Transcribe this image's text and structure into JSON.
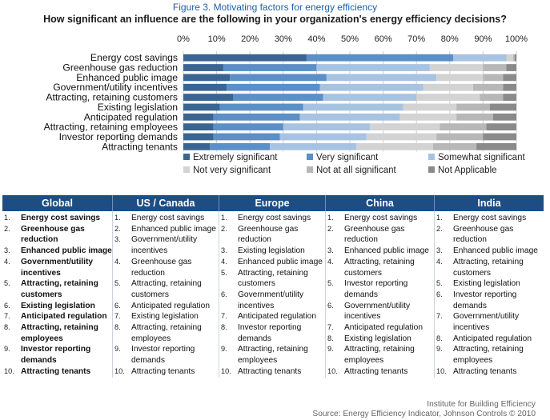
{
  "figure_caption": "Figure 3. Motivating factors for energy efficiency",
  "chart_data": {
    "type": "bar",
    "orientation": "horizontal",
    "stacked": true,
    "title": "How significant an influence are the following in your organization's energy efficiency decisions?",
    "x_ticks": [
      "0%",
      "10%",
      "20%",
      "30%",
      "40%",
      "50%",
      "60%",
      "70%",
      "80%",
      "90%",
      "100%"
    ],
    "xlim": [
      0,
      100
    ],
    "categories": [
      "Energy cost savings",
      "Greenhouse gas reduction",
      "Enhanced public image",
      "Government/utility incentives",
      "Attracting, retaining customers",
      "Existing legislation",
      "Anticipated regulation",
      "Attracting, retaining employees",
      "Investor reporting demands",
      "Attracting tenants"
    ],
    "series": [
      {
        "name": "Extremely significant",
        "color": "#3a6592",
        "values": [
          37,
          12,
          14,
          13,
          15,
          11,
          9,
          9,
          9,
          8
        ]
      },
      {
        "name": "Very significant",
        "color": "#5b8fc7",
        "values": [
          44,
          28,
          29,
          28,
          27,
          25,
          26,
          21,
          20,
          18
        ]
      },
      {
        "name": "Somewhat significant",
        "color": "#a7c3e2",
        "values": [
          16,
          34,
          33,
          31,
          28,
          30,
          30,
          26,
          26,
          26
        ]
      },
      {
        "name": "Not very significant",
        "color": "#d3d3d3",
        "values": [
          2,
          16,
          14,
          15,
          19,
          16,
          17,
          21,
          21,
          23
        ]
      },
      {
        "name": "Not at all significant",
        "color": "#b7b7b7",
        "values": [
          0.5,
          7,
          6,
          9,
          7,
          10,
          11,
          14,
          14,
          13
        ]
      },
      {
        "name": "Not Applicable",
        "color": "#8a8a8a",
        "values": [
          0.5,
          3,
          4,
          4,
          4,
          8,
          7,
          9,
          10,
          12
        ]
      }
    ]
  },
  "rankings": {
    "columns": [
      {
        "header": "Global",
        "bold": true,
        "items": [
          "Energy cost savings",
          "Greenhouse gas reduction",
          "Enhanced public image",
          "Government/utility incentives",
          "Attracting, retaining customers",
          "Existing legislation",
          "Anticipated regulation",
          "Attracting, retaining employees",
          "Investor reporting demands",
          "Attracting tenants"
        ]
      },
      {
        "header": "US / Canada",
        "bold": false,
        "items": [
          "Energy cost savings",
          "Enhanced public image",
          "Government/utility incentives",
          "Greenhouse gas reduction",
          "Attracting, retaining customers",
          "Anticipated regulation",
          "Existing legislation",
          "Attracting, retaining employees",
          "Investor reporting demands",
          "Attracting tenants"
        ]
      },
      {
        "header": "Europe",
        "bold": false,
        "items": [
          "Energy cost savings",
          "Greenhouse gas reduction",
          "Existing legislation",
          "Enhanced public image",
          "Attracting, retaining customers",
          "Government/utility incentives",
          "Anticipated regulation",
          "Investor reporting demands",
          "Attracting, retaining employees",
          "Attracting tenants"
        ]
      },
      {
        "header": "China",
        "bold": false,
        "items": [
          "Energy cost savings",
          "Greenhouse gas reduction",
          "Enhanced public image",
          "Attracting, retaining customers",
          "Investor reporting demands",
          "Government/utility incentives",
          "Anticipated regulation",
          "Existing legislation",
          "Attracting, retaining employees",
          "Attracting tenants"
        ]
      },
      {
        "header": "India",
        "bold": false,
        "items": [
          "Energy cost savings",
          "Greenhouse gas reduction",
          "Enhanced public image",
          "Attracting, retaining customers",
          "Existing legislation",
          "Investor reporting demands",
          "Government/utility incentives",
          "Anticipated regulation",
          "Attracting, retaining employees",
          "Attracting tenants"
        ]
      }
    ]
  },
  "footer": {
    "institute": "Institute for Building Efficiency",
    "source": "Source: Energy Efficiency Indicator, Johnson Controls © 2010"
  }
}
